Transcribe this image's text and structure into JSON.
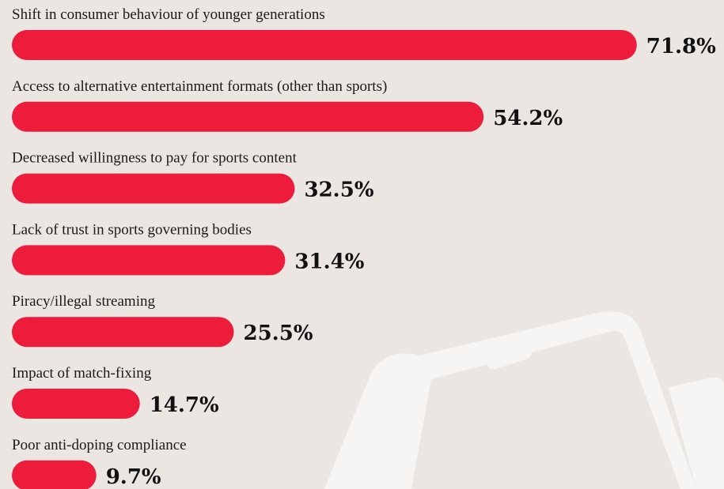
{
  "chart_data": {
    "type": "bar",
    "orientation": "horizontal",
    "categories": [
      "Shift in consumer behaviour of younger generations",
      "Access to alternative entertainment formats (other than sports)",
      "Decreased willingness to pay for sports content",
      "Lack of trust in sports governing bodies",
      "Piracy/illegal streaming",
      "Impact of match-fixing",
      "Poor anti-doping compliance"
    ],
    "values": [
      71.8,
      54.2,
      32.5,
      31.4,
      25.5,
      14.7,
      9.7
    ],
    "value_labels": [
      "71.8%",
      "54.2%",
      "32.5%",
      "31.4%",
      "25.5%",
      "14.7%",
      "9.7%"
    ],
    "color": "#ec1c3a"
  }
}
